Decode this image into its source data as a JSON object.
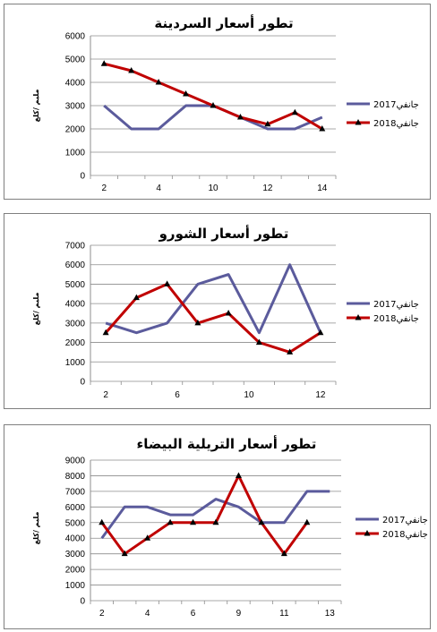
{
  "colors": {
    "series_2017": "#5b5b9c",
    "series_2018": "#c00000",
    "grid": "#8c8c8c",
    "axis": "#8c8c8c"
  },
  "chart_data": [
    {
      "type": "line",
      "title": "تطور أسعار السردينة",
      "ylabel": "مليم /كلغ",
      "ylim": [
        0,
        6000
      ],
      "yticks": [
        0,
        1000,
        2000,
        3000,
        4000,
        5000,
        6000
      ],
      "x_tick_labels": [
        "2",
        "4",
        "10",
        "12",
        "14"
      ],
      "grid": "horizontal",
      "legend": "right",
      "series": [
        {
          "name": "جانفي2017",
          "values": [
            3000,
            2000,
            2000,
            3000,
            3000,
            2500,
            2000,
            2000,
            2500
          ]
        },
        {
          "name": "جانفي2018",
          "values": [
            4800,
            4500,
            4000,
            3500,
            3000,
            2500,
            2200,
            2700,
            2000
          ]
        }
      ]
    },
    {
      "type": "line",
      "title": "تطور أسعار الشورو",
      "ylabel": "مليم /كلغ",
      "ylim": [
        0,
        7000
      ],
      "yticks": [
        0,
        1000,
        2000,
        3000,
        4000,
        5000,
        6000,
        7000
      ],
      "x_tick_labels": [
        "2",
        "6",
        "10",
        "12"
      ],
      "grid": "horizontal",
      "legend": "right",
      "series": [
        {
          "name": "جانفي2017",
          "values": [
            3000,
            2500,
            3000,
            5000,
            5500,
            2500,
            6000,
            2500
          ]
        },
        {
          "name": "جانفي2018",
          "values": [
            2500,
            4300,
            5000,
            3000,
            3500,
            2000,
            1500,
            2500
          ]
        }
      ]
    },
    {
      "type": "line",
      "title": "تطور أسعار التريلية البيضاء",
      "ylabel": "مليم /كلغ",
      "ylim": [
        0,
        9000
      ],
      "yticks": [
        0,
        1000,
        2000,
        3000,
        4000,
        5000,
        6000,
        7000,
        8000,
        9000
      ],
      "x_tick_labels": [
        "2",
        "4",
        "6",
        "9",
        "11",
        "13"
      ],
      "grid": "horizontal",
      "legend": "right",
      "series": [
        {
          "name": "جانفي2017",
          "values": [
            4000,
            6000,
            6000,
            5500,
            5500,
            6500,
            6000,
            5000,
            5000,
            7000,
            7000
          ]
        },
        {
          "name": "جانفي2018",
          "values": [
            5000,
            3000,
            4000,
            5000,
            5000,
            5000,
            8000,
            5000,
            3000,
            5000
          ]
        }
      ]
    }
  ]
}
